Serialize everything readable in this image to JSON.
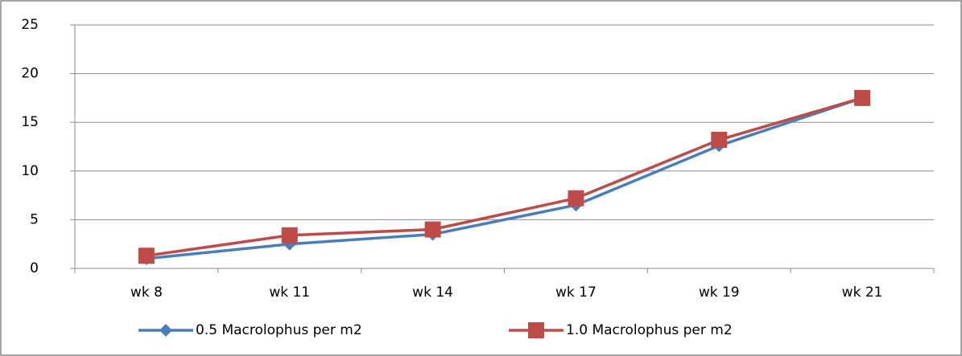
{
  "chart_data": {
    "type": "line",
    "categories": [
      "wk 8",
      "wk 11",
      "wk 14",
      "wk 17",
      "wk 19",
      "wk 21"
    ],
    "series": [
      {
        "name": "0.5 Macrolophus per m2",
        "color": "#4a7ebb",
        "marker": "diamond",
        "values": [
          1.0,
          2.5,
          3.5,
          6.5,
          12.6,
          17.5
        ]
      },
      {
        "name": "1.0 Macrolophus per m2",
        "color": "#be4b48",
        "marker": "square",
        "values": [
          1.3,
          3.4,
          4.0,
          7.2,
          13.2,
          17.5
        ]
      }
    ],
    "ylim": [
      0,
      25
    ],
    "yticks": [
      0,
      5,
      10,
      15,
      20,
      25
    ],
    "grid": true,
    "legend": "bottom"
  }
}
